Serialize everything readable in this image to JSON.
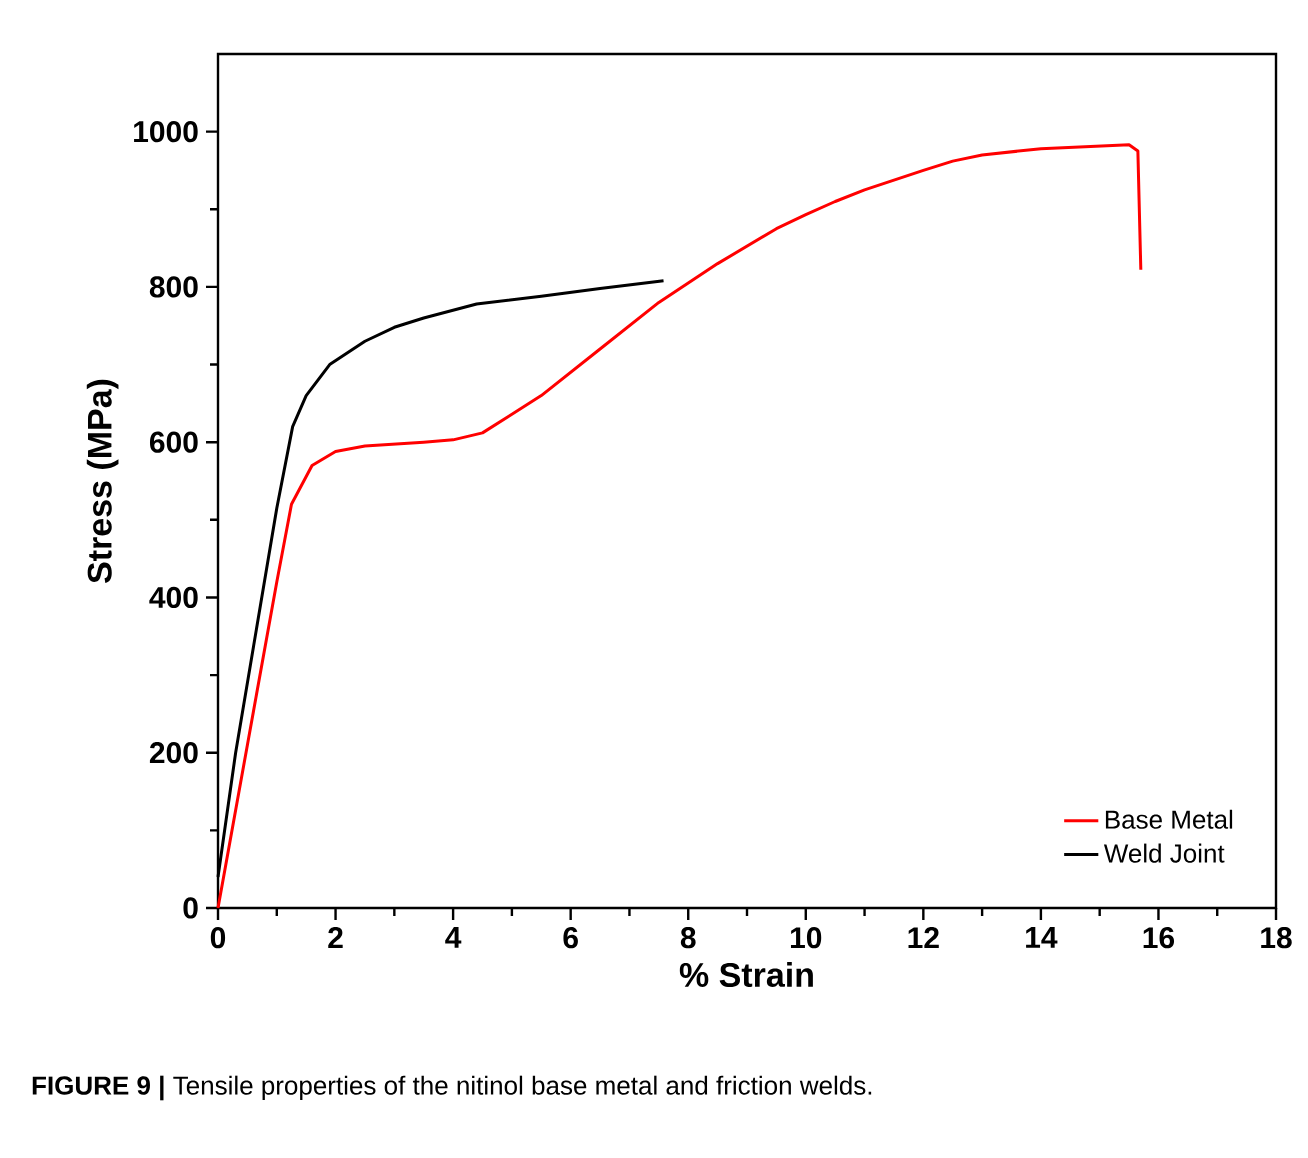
{
  "chart_data": {
    "type": "line",
    "xlabel": "% Strain",
    "ylabel": "Stress (MPa)",
    "annotations": [
      "**FIGURE 9 |** Tensile properties of the nitinol base metal and friction welds."
    ],
    "xlim": [
      0,
      18
    ],
    "xticks": [
      0,
      2,
      4,
      6,
      8,
      10,
      12,
      14,
      16,
      18
    ],
    "ylim": [
      0,
      1100
    ],
    "yticks": [
      0,
      200,
      400,
      600,
      800,
      1000
    ],
    "legend": "bottom right",
    "grid": false,
    "marker": "none",
    "line_style": "solid",
    "series": [
      {
        "name": "Base Metal",
        "color": "#ff0000",
        "x": [
          0,
          0.5,
          1.0,
          1.25,
          1.6,
          2.0,
          2.5,
          3.5,
          4.0,
          4.5,
          5.5,
          6.5,
          7.5,
          8.5,
          9.5,
          10.0,
          10.5,
          11.0,
          12.0,
          12.5,
          13.0,
          14.0,
          15.5,
          15.65,
          15.7
        ],
        "values": [
          0,
          210,
          420,
          520,
          570,
          588,
          595,
          600,
          603,
          612,
          660,
          720,
          780,
          830,
          875,
          893,
          910,
          925,
          950,
          962,
          970,
          978,
          983,
          975,
          822
        ]
      },
      {
        "name": "Weld Joint",
        "color": "#000000",
        "x": [
          0,
          0.3,
          0.7,
          1.0,
          1.27,
          1.5,
          1.9,
          2.5,
          3.0,
          3.5,
          4.4,
          5.5,
          6.5,
          7.58
        ],
        "values": [
          40,
          200,
          380,
          515,
          620,
          660,
          700,
          730,
          748,
          760,
          778,
          788,
          798,
          808
        ]
      }
    ]
  }
}
